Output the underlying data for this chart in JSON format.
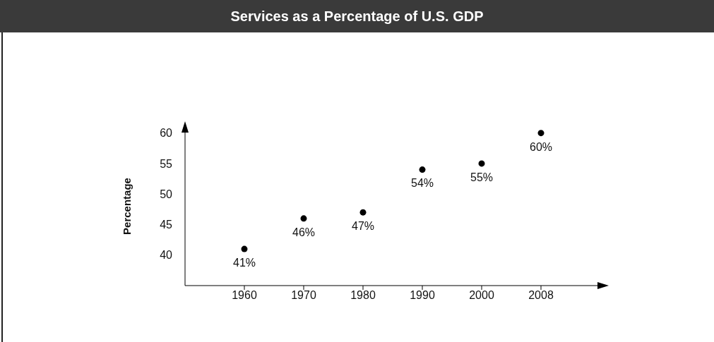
{
  "chart_data": {
    "type": "scatter",
    "title": "Services as a Percentage of U.S. GDP",
    "ylabel": "Percentage",
    "categories": [
      "1960",
      "1970",
      "1980",
      "1990",
      "2000",
      "2008"
    ],
    "values": [
      41,
      46,
      47,
      54,
      55,
      60
    ],
    "value_labels": [
      "41%",
      "46%",
      "47%",
      "54%",
      "55%",
      "60%"
    ],
    "color": "#000000",
    "marker": "circle",
    "ylim": [
      35,
      61
    ],
    "yticks": [
      40,
      45,
      50,
      55,
      60
    ]
  }
}
